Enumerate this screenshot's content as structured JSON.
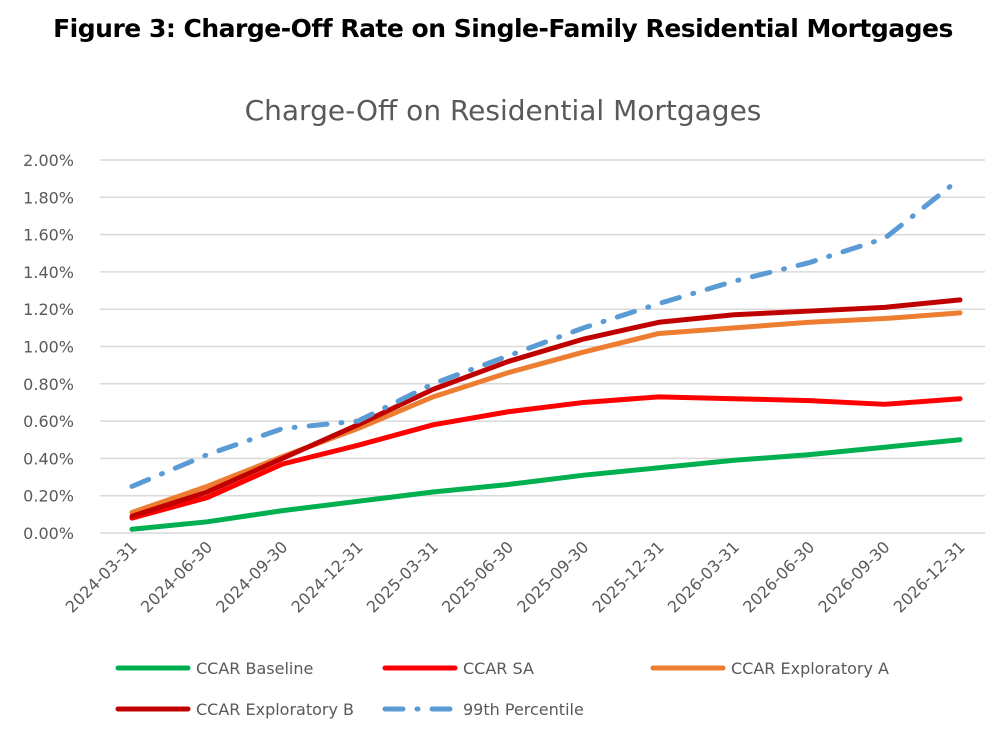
{
  "figure_title": "Figure 3: Charge-Off Rate on Single-Family Residential Mortgages",
  "chart_data": {
    "type": "line",
    "title": "Charge-Off on Residential Mortgages",
    "xlabel": "",
    "ylabel": "",
    "ylim": [
      0,
      2.0
    ],
    "yticks": [
      "0.00%",
      "0.20%",
      "0.40%",
      "0.60%",
      "0.80%",
      "1.00%",
      "1.20%",
      "1.40%",
      "1.60%",
      "1.80%",
      "2.00%"
    ],
    "grid": true,
    "legend": "bottom",
    "categories": [
      "2024-03-31",
      "2024-06-30",
      "2024-09-30",
      "2024-12-31",
      "2025-03-31",
      "2025-06-30",
      "2025-09-30",
      "2025-12-31",
      "2026-03-31",
      "2026-06-30",
      "2026-09-30",
      "2026-12-31"
    ],
    "series": [
      {
        "name": "CCAR Baseline",
        "color": "#00b050",
        "dash": "solid",
        "values": [
          0.02,
          0.06,
          0.12,
          0.17,
          0.22,
          0.26,
          0.31,
          0.35,
          0.39,
          0.42,
          0.46,
          0.5
        ]
      },
      {
        "name": "CCAR SA",
        "color": "#ff0000",
        "dash": "solid",
        "values": [
          0.08,
          0.19,
          0.37,
          0.47,
          0.58,
          0.65,
          0.7,
          0.73,
          0.72,
          0.71,
          0.69,
          0.72
        ]
      },
      {
        "name": "CCAR Exploratory A",
        "color": "#ed7d31",
        "dash": "solid",
        "values": [
          0.11,
          0.25,
          0.41,
          0.56,
          0.73,
          0.86,
          0.97,
          1.07,
          1.1,
          1.13,
          1.15,
          1.18
        ]
      },
      {
        "name": "CCAR Exploratory B",
        "color": "#c00000",
        "dash": "solid",
        "values": [
          0.09,
          0.22,
          0.4,
          0.58,
          0.77,
          0.92,
          1.04,
          1.13,
          1.17,
          1.19,
          1.21,
          1.25
        ]
      },
      {
        "name": "99th Percentile",
        "color": "#5b9bd5",
        "dash": "dash-dot",
        "values": [
          0.25,
          0.42,
          0.56,
          0.6,
          0.8,
          0.95,
          1.1,
          1.23,
          1.35,
          1.45,
          1.58,
          1.9
        ]
      }
    ]
  }
}
